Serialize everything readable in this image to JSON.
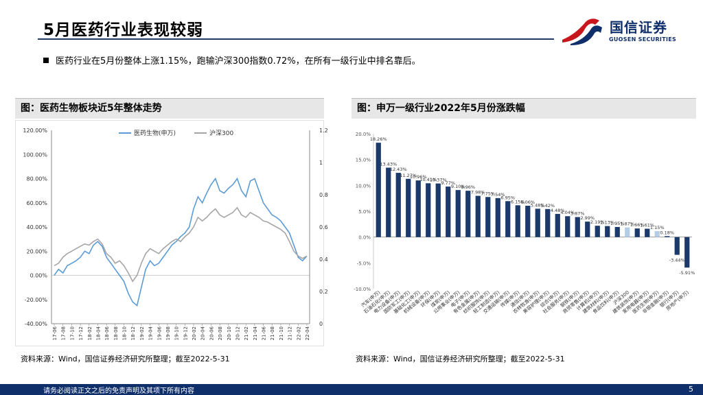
{
  "slide": {
    "title": "5月医药行业表现较弱",
    "bullet": "医药行业在5月份整体上涨1.15%，跑输沪深300指数0.72%，在所有一级行业中排名靠后。",
    "page_number": "5",
    "footer": "请务必阅读正文之后的免责声明及其项下所有内容"
  },
  "logo": {
    "name_cn": "国信证券",
    "name_en": "GUOSEN SECURITIES"
  },
  "colors": {
    "navy": "#0f2f6b",
    "red": "#c8161d",
    "bar": "#1b3a6b",
    "bar_highlight": "#b4cde6",
    "line_pharma": "#5b9bd5",
    "line_hs300": "#a5a5a5"
  },
  "left_panel": {
    "heading": "图：医药生物板块近5年整体走势",
    "source": "资料来源：Wind，国信证券经济研究所整理；截至2022-5-31"
  },
  "right_panel": {
    "heading": "图：申万一级行业2022年5月份涨跌幅",
    "source": "资料来源：Wind，国信证券经济研究所整理；截至2022-5-31"
  },
  "chart_data": [
    {
      "type": "line",
      "title": "医药生物板块近5年整体走势",
      "legend": [
        "医药生物(申万)",
        "沪深300"
      ],
      "legend_position": "top-center",
      "y_left_ticks": [
        "120.00%",
        "100.00%",
        "80.00%",
        "60.00%",
        "40.00%",
        "20.00%",
        "0.00%",
        "-20.00%",
        "-40.00%"
      ],
      "y_left_range": [
        -40,
        120
      ],
      "y_right_ticks": [
        "1.2",
        "1",
        "0.8",
        "0.6",
        "0.4",
        "0.2",
        "0"
      ],
      "y_right_range": [
        0,
        1.2
      ],
      "x_ticks": [
        "17-06",
        "17-08",
        "17-10",
        "17-12",
        "18-02",
        "18-04",
        "18-06",
        "18-08",
        "18-10",
        "18-12",
        "19-02",
        "19-04",
        "19-06",
        "19-08",
        "19-10",
        "19-12",
        "20-02",
        "20-04",
        "20-06",
        "20-08",
        "20-10",
        "20-12",
        "21-02",
        "21-04",
        "21-06",
        "21-08",
        "21-10",
        "21-12",
        "22-02",
        "22-04"
      ],
      "series": [
        {
          "name": "医药生物(申万)",
          "axis": "left",
          "values": [
            0,
            5,
            2,
            8,
            10,
            12,
            15,
            20,
            18,
            25,
            28,
            24,
            15,
            10,
            5,
            0,
            -5,
            -15,
            -22,
            -25,
            -10,
            5,
            12,
            8,
            10,
            15,
            20,
            25,
            28,
            32,
            35,
            40,
            55,
            65,
            60,
            68,
            75,
            80,
            70,
            68,
            72,
            75,
            80,
            70,
            65,
            78,
            80,
            70,
            60,
            55,
            50,
            48,
            45,
            40,
            35,
            25,
            15,
            12,
            16
          ]
        },
        {
          "name": "沪深300",
          "axis": "left",
          "values": [
            8,
            10,
            15,
            18,
            20,
            22,
            24,
            26,
            25,
            28,
            30,
            26,
            18,
            15,
            10,
            12,
            8,
            2,
            -5,
            0,
            10,
            18,
            22,
            20,
            18,
            22,
            25,
            28,
            30,
            28,
            32,
            35,
            40,
            48,
            45,
            48,
            52,
            55,
            50,
            48,
            50,
            52,
            56,
            50,
            48,
            52,
            50,
            48,
            45,
            44,
            42,
            40,
            38,
            35,
            28,
            20,
            16,
            14,
            16
          ]
        }
      ]
    },
    {
      "type": "bar",
      "title": "申万一级行业2022年5月份涨跌幅",
      "ylim": [
        -10,
        20
      ],
      "y_ticks": [
        "20.0%",
        "15.0%",
        "10.0%",
        "5.0%",
        "0.0%",
        "-5.0%",
        "-10.0%"
      ],
      "categories": [
        "汽车(申万)",
        "石油石化(申万)",
        "电力设备(申万)",
        "国防军工(申万)",
        "基础化工(申万)",
        "机械设备(申万)",
        "环保(申万)",
        "煤炭(申万)",
        "公用事业(申万)",
        "电子(申万)",
        "有色金属(申万)",
        "纺织服饰(申万)",
        "轻工制造(申万)",
        "交通运输(申万)",
        "传媒(申万)",
        "通信(申万)",
        "农林牧渔(申万)",
        "美容护理(申万)",
        "综合(申万)",
        "社会服务(申万)",
        "钢铁(申万)",
        "商贸零售(申万)",
        "计算机(申万)",
        "建筑材料(申万)",
        "食品饮料(申万)",
        "沪深300",
        "建筑装饰(申万)",
        "家用电器(申万)",
        "医药生物(申万)",
        "非银金融(申万)",
        "银行(申万)",
        "房地产(申万)"
      ],
      "values": [
        18.26,
        13.43,
        12.43,
        11.27,
        10.96,
        10.41,
        10.37,
        9.77,
        9.1,
        8.96,
        7.98,
        7.75,
        7.54,
        6.95,
        6.15,
        6.06,
        5.48,
        5.42,
        4.48,
        4.04,
        3.87,
        2.99,
        2.19,
        2.13,
        1.95,
        1.87,
        1.66,
        1.61,
        1.15,
        0.18,
        -3.44,
        -5.91
      ],
      "labels": [
        "18.26%",
        "13.43%",
        "12.43%",
        "11.27%",
        "10.96%",
        "10.41%",
        "10.37%",
        "9.77%",
        "9.10%",
        "8.96%",
        "7.98%",
        "7.75%",
        "7.54%",
        "6.95%",
        "6.15%",
        "6.06%",
        "5.48%",
        "5.42%",
        "4.48%",
        "4.04%",
        "3.87%",
        "2.99%",
        "2.19%",
        "2.13%",
        "1.95%",
        "1.87%",
        "1.66%",
        "1.61%",
        "1.15%",
        "0.18%",
        "-3.44%",
        "-5.91%"
      ],
      "highlight_categories": [
        "沪深300",
        "医药生物(申万)"
      ]
    }
  ]
}
